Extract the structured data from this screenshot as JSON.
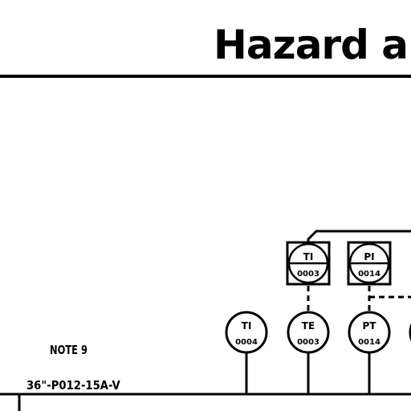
{
  "title": "Hazard an",
  "note": "NOTE 9",
  "process_line": "36\"-P012-15A-V",
  "instruments": {
    "ti_0003": {
      "function": "TI",
      "number": "0003"
    },
    "pi_0014": {
      "function": "PI",
      "number": "0014"
    },
    "ti_0004": {
      "function": "TI",
      "number": "0004"
    },
    "te_0003": {
      "function": "TE",
      "number": "0003"
    },
    "pt_0014": {
      "function": "PT",
      "number": "0014"
    }
  }
}
